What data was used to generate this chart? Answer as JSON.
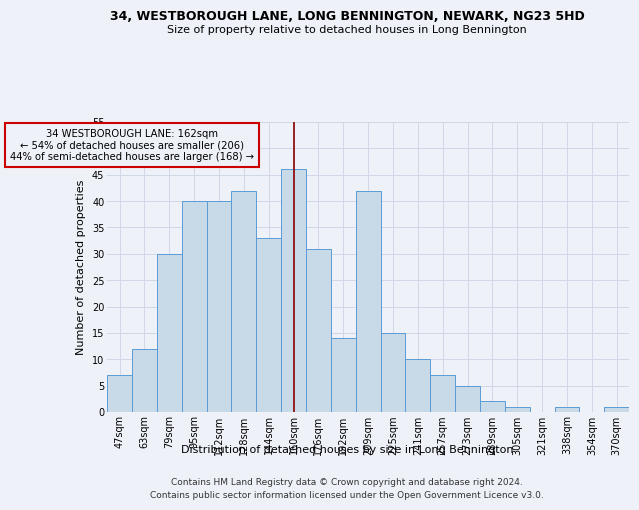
{
  "title": "34, WESTBOROUGH LANE, LONG BENNINGTON, NEWARK, NG23 5HD",
  "subtitle": "Size of property relative to detached houses in Long Bennington",
  "xlabel": "Distribution of detached houses by size in Long Bennington",
  "ylabel": "Number of detached properties",
  "footer_line1": "Contains HM Land Registry data © Crown copyright and database right 2024.",
  "footer_line2": "Contains public sector information licensed under the Open Government Licence v3.0.",
  "annotation_line1": "34 WESTBOROUGH LANE: 162sqm",
  "annotation_line2": "← 54% of detached houses are smaller (206)",
  "annotation_line3": "44% of semi-detached houses are larger (168) →",
  "bar_labels": [
    "47sqm",
    "63sqm",
    "79sqm",
    "95sqm",
    "112sqm",
    "128sqm",
    "144sqm",
    "160sqm",
    "176sqm",
    "192sqm",
    "209sqm",
    "225sqm",
    "241sqm",
    "257sqm",
    "273sqm",
    "289sqm",
    "305sqm",
    "321sqm",
    "338sqm",
    "354sqm",
    "370sqm"
  ],
  "bar_values": [
    7,
    12,
    30,
    40,
    40,
    42,
    33,
    46,
    31,
    14,
    42,
    15,
    10,
    7,
    5,
    2,
    1,
    0,
    1,
    0,
    1
  ],
  "bar_color": "#c8d9e8",
  "bar_edge_color": "#5b9bd5",
  "highlight_bar_index": 7,
  "highlight_line_color": "#8b0000",
  "annotation_box_edge": "#cc0000",
  "ylim": [
    0,
    55
  ],
  "yticks": [
    0,
    5,
    10,
    15,
    20,
    25,
    30,
    35,
    40,
    45,
    50,
    55
  ],
  "grid_color": "#d0d8e8",
  "bg_color": "#eef2f8",
  "title_fontsize": 9,
  "subtitle_fontsize": 8,
  "axis_label_fontsize": 8,
  "tick_fontsize": 7,
  "footer_fontsize": 6.5
}
